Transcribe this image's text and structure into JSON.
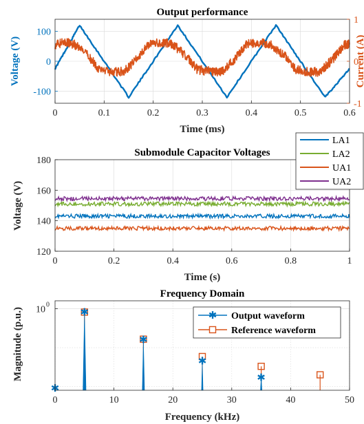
{
  "colors": {
    "blue": "#0072BD",
    "orange": "#D95319",
    "green": "#77AC30",
    "purple": "#7E2F8E",
    "axis": "#262626",
    "grid": "#d9d9d9"
  },
  "chart_data": [
    {
      "type": "line",
      "title": "Output performance",
      "xlabel": "Time (ms)",
      "ylabel": "Voltage (V)",
      "ylabel_right": "Current (A)",
      "xlim": [
        0,
        0.6
      ],
      "ylim": [
        -140,
        140
      ],
      "ylim_right": [
        -1,
        1
      ],
      "xticks": [
        "0",
        "0.1",
        "0.2",
        "0.3",
        "0.4",
        "0.5",
        "0.6"
      ],
      "yticks": [
        "-100",
        "0",
        "100"
      ],
      "yticks_right": [
        "-1",
        "0",
        "1"
      ],
      "grid": true,
      "series": [
        {
          "axis": "left",
          "color": "#0072BD",
          "x": [
            0,
            0.05,
            0.15,
            0.25,
            0.35,
            0.45,
            0.55,
            0.6
          ],
          "y": [
            -25,
            120,
            -120,
            120,
            -120,
            120,
            -120,
            -25
          ]
        },
        {
          "axis": "right",
          "color": "#D95319",
          "x": [
            0,
            0.02,
            0.04,
            0.07,
            0.09,
            0.12,
            0.14,
            0.17,
            0.19,
            0.22,
            0.24,
            0.27,
            0.29,
            0.32,
            0.34,
            0.37,
            0.39,
            0.42,
            0.44,
            0.47,
            0.49,
            0.52,
            0.54,
            0.57,
            0.59,
            0.6
          ],
          "y": [
            0.4,
            0.45,
            0.4,
            0.1,
            -0.2,
            -0.25,
            -0.25,
            0.1,
            0.4,
            0.45,
            0.4,
            0.1,
            -0.2,
            -0.25,
            -0.25,
            0.1,
            0.4,
            0.45,
            0.4,
            0.1,
            -0.2,
            -0.25,
            -0.25,
            0.1,
            0.4,
            0.4
          ]
        }
      ]
    },
    {
      "type": "line",
      "title": "Submodule Capacitor Voltages",
      "xlabel": "Time (s)",
      "ylabel": "Voltage (V)",
      "xlim": [
        0,
        1
      ],
      "ylim": [
        120,
        180
      ],
      "xticks": [
        "0",
        "0.2",
        "0.4",
        "0.6",
        "0.8",
        "1"
      ],
      "yticks": [
        "120",
        "140",
        "160",
        "180"
      ],
      "grid": true,
      "legend": "top-right",
      "series": [
        {
          "name": "LA1",
          "color": "#0072BD",
          "level": 143
        },
        {
          "name": "LA2",
          "color": "#77AC30",
          "level": 151
        },
        {
          "name": "UA1",
          "color": "#D95319",
          "level": 135
        },
        {
          "name": "UA2",
          "color": "#7E2F8E",
          "level": 154.5
        }
      ]
    },
    {
      "type": "scatter",
      "title": "Frequency Domain",
      "xlabel": "Frequency (kHz)",
      "ylabel": "Magnitude (p.u.)",
      "xlim": [
        0,
        50
      ],
      "ylim": [
        0.008,
        1.6
      ],
      "yscale": "log",
      "xticks": [
        "0",
        "10",
        "20",
        "30",
        "40",
        "50"
      ],
      "ytick_label": "10",
      "ytick_exponent": "0",
      "grid": true,
      "legend": "top-right",
      "series": [
        {
          "name": "Output waveform",
          "color": "#0072BD",
          "marker": "asterisk",
          "x": [
            0,
            5,
            15,
            25,
            35
          ],
          "y": [
            0.009,
            0.82,
            0.16,
            0.045,
            0.017
          ]
        },
        {
          "name": "Reference waveform",
          "color": "#D95319",
          "marker": "square",
          "x": [
            5,
            15,
            25,
            35,
            45
          ],
          "y": [
            0.82,
            0.165,
            0.059,
            0.033,
            0.02
          ]
        }
      ]
    }
  ]
}
